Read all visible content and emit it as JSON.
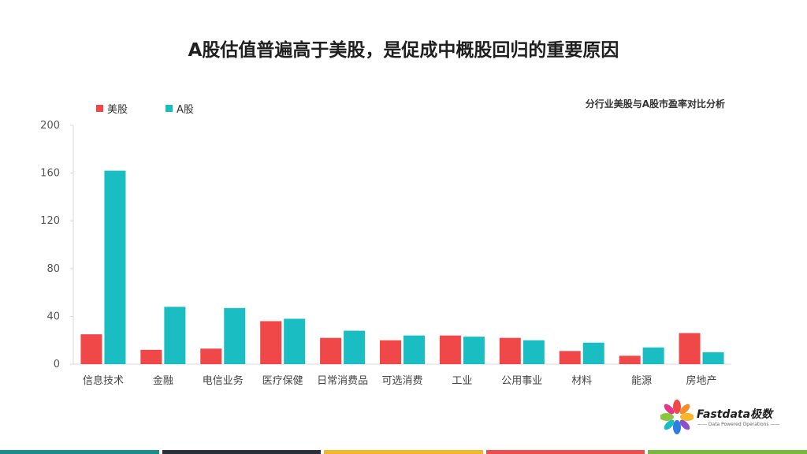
{
  "title": "A股估值普遍高于美股，是促成中概股回归的重要原因",
  "colors": {
    "us": "#f04848",
    "a": "#19bdc2",
    "axis": "#d9d9d9",
    "footer": [
      "#1a8c8c",
      "#2b2f3a",
      "#f2b72b",
      "#ef4d4d",
      "#78b83c"
    ]
  },
  "logo": {
    "text": "Fastdata极数",
    "tagline": "—— Data Powered Operations ——"
  },
  "chart_data": {
    "type": "bar",
    "title": "分行业美股与A股市盈率对比分析",
    "xlabel": "",
    "ylabel": "",
    "categories": [
      "信息技术",
      "金融",
      "电信业务",
      "医疗保健",
      "日常消费品",
      "可选消费",
      "工业",
      "公用事业",
      "材料",
      "能源",
      "房地产"
    ],
    "series": [
      {
        "name": "美股",
        "values": [
          25,
          12,
          13,
          36,
          22,
          20,
          24,
          22,
          11,
          7,
          26
        ]
      },
      {
        "name": "A股",
        "values": [
          162,
          48,
          47,
          38,
          28,
          24,
          23,
          20,
          18,
          14,
          10
        ]
      }
    ],
    "ylim": [
      0,
      200
    ],
    "yticks": [
      0,
      40,
      80,
      120,
      160,
      200
    ],
    "grid": false,
    "legend": "top-left"
  }
}
